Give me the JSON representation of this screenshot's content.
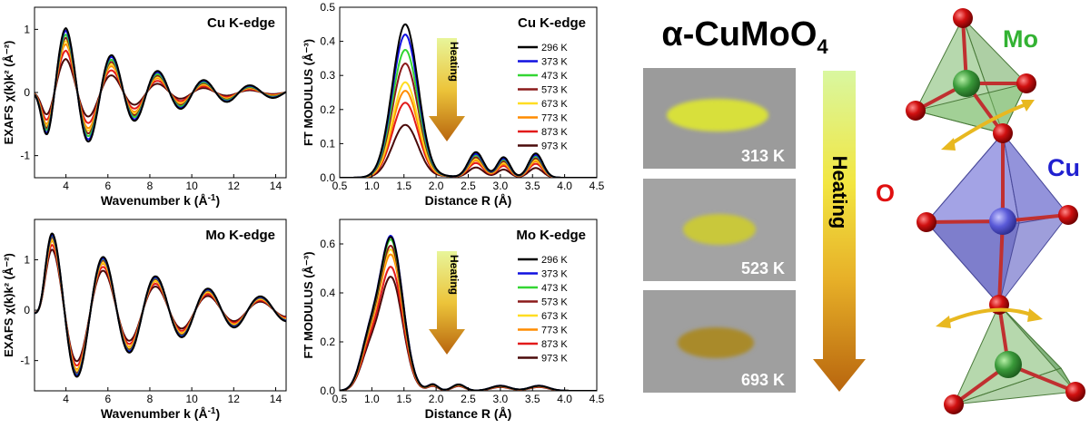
{
  "compound": {
    "prefix": "α-CuMoO",
    "subscript": "4"
  },
  "temperatures": [
    "296 K",
    "373 K",
    "473 K",
    "573 K",
    "673 K",
    "773 K",
    "873 K",
    "973 K"
  ],
  "colors": [
    "#000000",
    "#1010e0",
    "#33d633",
    "#8b1a1a",
    "#ffdd22",
    "#ff8c00",
    "#e21a1a",
    "#4a0a0a"
  ],
  "heating_label": "Heating",
  "photos": [
    {
      "label": "313 K",
      "powder_color": "#d8e03a"
    },
    {
      "label": "523 K",
      "powder_color": "#c9c83a"
    },
    {
      "label": "693 K",
      "powder_color": "#a98a2a"
    }
  ],
  "structure_labels": {
    "mo": "Mo",
    "cu": "Cu",
    "o": "O"
  },
  "chart_data": [
    {
      "type": "line",
      "id": "exafs-cu",
      "title": "Cu K-edge",
      "xlabel": "Wavenumber k (Å",
      "xlabel_sup": "-1",
      "xlabel_end": ")",
      "ylabel": "EXAFS χ(k)k² (Å⁻²)",
      "xlim": [
        2.5,
        14.5
      ],
      "ylim": [
        -1.35,
        1.35
      ],
      "xticks": [
        4,
        6,
        8,
        10,
        12,
        14
      ],
      "yticks": [
        -1,
        0,
        1
      ],
      "model": {
        "kind": "exafs",
        "amp": 1.02,
        "k0": 4.0,
        "period": 2.2,
        "decay": 0.25,
        "scale": [
          1.0,
          0.96,
          0.9,
          0.85,
          0.8,
          0.75,
          0.65,
          0.52
        ]
      }
    },
    {
      "type": "line",
      "id": "ft-cu",
      "title": "Cu K-edge",
      "xlabel": "Distance R (Å)",
      "ylabel": "FT MODULUS (Å⁻³)",
      "xlim": [
        0.5,
        4.5
      ],
      "ylim": [
        0,
        0.5
      ],
      "xticks": [
        0.5,
        1.0,
        1.5,
        2.0,
        2.5,
        3.0,
        3.5,
        4.0,
        4.5
      ],
      "yticks": [
        0.0,
        0.1,
        0.2,
        0.3,
        0.4,
        0.5
      ],
      "series": [
        {
          "name": "296 K",
          "peak": 0.45,
          "second": 0.075
        },
        {
          "name": "373 K",
          "peak": 0.42,
          "second": 0.07
        },
        {
          "name": "473 K",
          "peak": 0.375,
          "second": 0.066
        },
        {
          "name": "573 K",
          "peak": 0.335,
          "second": 0.06
        },
        {
          "name": "673 K",
          "peak": 0.28,
          "second": 0.055
        },
        {
          "name": "773 K",
          "peak": 0.255,
          "second": 0.05
        },
        {
          "name": "873 K",
          "peak": 0.22,
          "second": 0.043
        },
        {
          "name": "973 K",
          "peak": 0.155,
          "second": 0.03
        }
      ]
    },
    {
      "type": "line",
      "id": "exafs-mo",
      "title": "Mo K-edge",
      "xlabel": "Wavenumber k (Å",
      "xlabel_sup": "-1",
      "xlabel_end": ")",
      "ylabel": "EXAFS χ(k)k² (Å⁻²)",
      "xlim": [
        2.5,
        14.5
      ],
      "ylim": [
        -1.6,
        1.8
      ],
      "xticks": [
        4,
        6,
        8,
        10,
        12,
        14
      ],
      "yticks": [
        -1,
        0,
        1
      ],
      "model": {
        "kind": "exafs",
        "amp": 1.65,
        "k0": 3.3,
        "period": 2.5,
        "decay": 0.18,
        "scale": [
          1.0,
          0.98,
          0.97,
          0.95,
          0.92,
          0.9,
          0.85,
          0.79
        ]
      }
    },
    {
      "type": "line",
      "id": "ft-mo",
      "title": "Mo K-edge",
      "xlabel": "Distance R (Å)",
      "ylabel": "FT MODULUS (Å⁻³)",
      "xlim": [
        0.5,
        4.5
      ],
      "ylim": [
        0,
        0.7
      ],
      "xticks": [
        0.5,
        1.0,
        1.5,
        2.0,
        2.5,
        3.0,
        3.5,
        4.0,
        4.5
      ],
      "yticks": [
        0.0,
        0.2,
        0.4,
        0.6
      ],
      "series": [
        {
          "name": "296 K",
          "peak": 0.62
        },
        {
          "name": "373 K",
          "peak": 0.625
        },
        {
          "name": "473 K",
          "peak": 0.61
        },
        {
          "name": "573 K",
          "peak": 0.585
        },
        {
          "name": "673 K",
          "peak": 0.57
        },
        {
          "name": "773 K",
          "peak": 0.55
        },
        {
          "name": "873 K",
          "peak": 0.5
        },
        {
          "name": "973 K",
          "peak": 0.46
        }
      ]
    }
  ]
}
